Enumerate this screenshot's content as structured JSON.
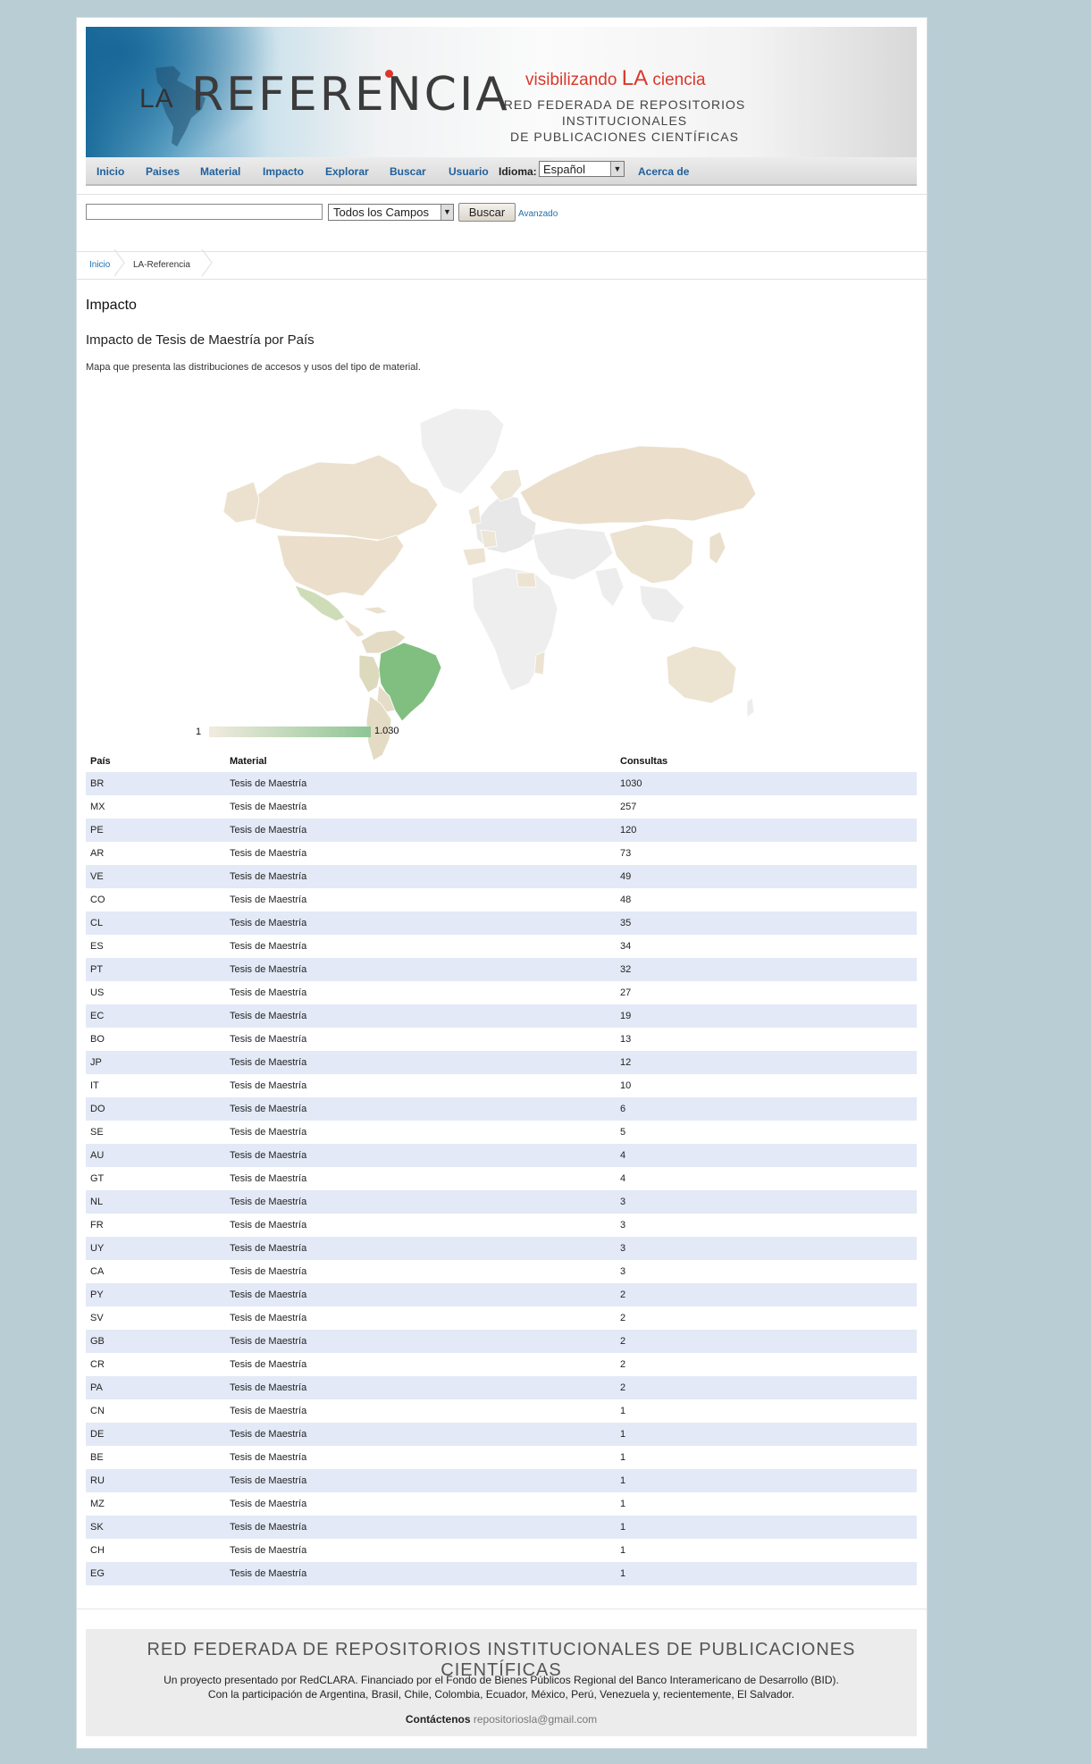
{
  "header": {
    "logo_prefix": "LA",
    "logo_main": "REFERENCIA",
    "tagline_pre": "visibilizando ",
    "tagline_la": "LA",
    "tagline_post": " ciencia",
    "network_line1": "RED FEDERADA DE REPOSITORIOS INSTITUCIONALES",
    "network_line2": "DE PUBLICACIONES CIENTÍFICAS"
  },
  "nav": {
    "items": [
      "Inicio",
      "Paises",
      "Material",
      "Impacto",
      "Explorar",
      "Buscar",
      "Usuario"
    ],
    "idioma_label": "Idioma:",
    "language_selected": "Español",
    "about": "Acerca de"
  },
  "search": {
    "query": "",
    "field_selected": "Todos los Campos",
    "button": "Buscar",
    "advanced": "Avanzado"
  },
  "breadcrumb": {
    "home": "Inicio",
    "current": "LA-Referencia"
  },
  "main": {
    "title": "Impacto",
    "section_title": "Impacto de Tesis de Maestría por País",
    "description": "Mapa que presenta las distribuciones de accesos y usos del tipo de material."
  },
  "map": {
    "legend_min": "1",
    "legend_max": "1.030",
    "colors": {
      "low": "#f2ebdf",
      "high": "#8ec594",
      "no_data": "#f0f0f0",
      "border": "#ffffff"
    }
  },
  "table": {
    "headers": [
      "País",
      "Material",
      "Consultas"
    ],
    "rows": [
      [
        "BR",
        "Tesis de Maestría",
        "1030"
      ],
      [
        "MX",
        "Tesis de Maestría",
        "257"
      ],
      [
        "PE",
        "Tesis de Maestría",
        "120"
      ],
      [
        "AR",
        "Tesis de Maestría",
        "73"
      ],
      [
        "VE",
        "Tesis de Maestría",
        "49"
      ],
      [
        "CO",
        "Tesis de Maestría",
        "48"
      ],
      [
        "CL",
        "Tesis de Maestría",
        "35"
      ],
      [
        "ES",
        "Tesis de Maestría",
        "34"
      ],
      [
        "PT",
        "Tesis de Maestría",
        "32"
      ],
      [
        "US",
        "Tesis de Maestría",
        "27"
      ],
      [
        "EC",
        "Tesis de Maestría",
        "19"
      ],
      [
        "BO",
        "Tesis de Maestría",
        "13"
      ],
      [
        "JP",
        "Tesis de Maestría",
        "12"
      ],
      [
        "IT",
        "Tesis de Maestría",
        "10"
      ],
      [
        "DO",
        "Tesis de Maestría",
        "6"
      ],
      [
        "SE",
        "Tesis de Maestría",
        "5"
      ],
      [
        "AU",
        "Tesis de Maestría",
        "4"
      ],
      [
        "GT",
        "Tesis de Maestría",
        "4"
      ],
      [
        "NL",
        "Tesis de Maestría",
        "3"
      ],
      [
        "FR",
        "Tesis de Maestría",
        "3"
      ],
      [
        "UY",
        "Tesis de Maestría",
        "3"
      ],
      [
        "CA",
        "Tesis de Maestría",
        "3"
      ],
      [
        "PY",
        "Tesis de Maestría",
        "2"
      ],
      [
        "SV",
        "Tesis de Maestría",
        "2"
      ],
      [
        "GB",
        "Tesis de Maestría",
        "2"
      ],
      [
        "CR",
        "Tesis de Maestría",
        "2"
      ],
      [
        "PA",
        "Tesis de Maestría",
        "2"
      ],
      [
        "CN",
        "Tesis de Maestría",
        "1"
      ],
      [
        "DE",
        "Tesis de Maestría",
        "1"
      ],
      [
        "BE",
        "Tesis de Maestría",
        "1"
      ],
      [
        "RU",
        "Tesis de Maestría",
        "1"
      ],
      [
        "MZ",
        "Tesis de Maestría",
        "1"
      ],
      [
        "SK",
        "Tesis de Maestría",
        "1"
      ],
      [
        "CH",
        "Tesis de Maestría",
        "1"
      ],
      [
        "EG",
        "Tesis de Maestría",
        "1"
      ]
    ]
  },
  "footer": {
    "title": "RED FEDERADA DE REPOSITORIOS INSTITUCIONALES DE PUBLICACIONES CIENTÍFICAS",
    "line1": "Un proyecto presentado por RedCLARA. Financiado por el Fondo de Bienes Públicos Regional del Banco Interamericano de Desarrollo (BID).",
    "line2": "Con la participación de Argentina, Brasil, Chile, Colombia, Ecuador, México, Perú, Venezuela y, recientemente, El Salvador.",
    "contact_label": "Contáctenos",
    "email": "repositoriosla@gmail.com"
  }
}
